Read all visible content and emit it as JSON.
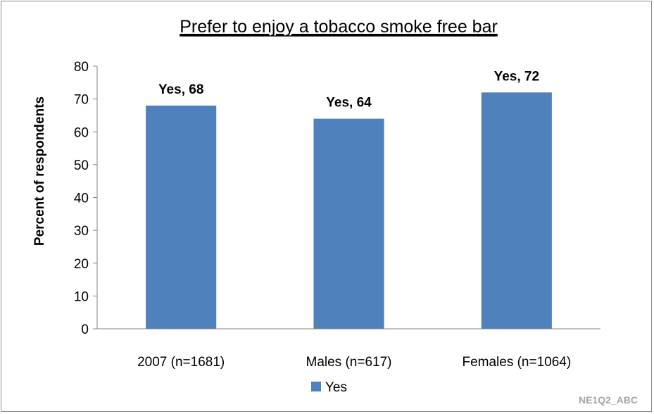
{
  "chart_data": {
    "type": "bar",
    "title": "Prefer to enjoy a tobacco smoke free bar",
    "xlabel": "",
    "ylabel": "Percent of respondents",
    "categories": [
      "2007 (n=1681)",
      "Males (n=617)",
      "Females (n=1064)"
    ],
    "series": [
      {
        "name": "Yes",
        "values": [
          68,
          64,
          72
        ],
        "data_labels": [
          "Yes, 68",
          "Yes, 64",
          "Yes, 72"
        ],
        "color": "#4f81bd"
      }
    ],
    "ylim": [
      0,
      80
    ],
    "yticks": [
      "0",
      "10",
      "20",
      "30",
      "40",
      "50",
      "60",
      "70",
      "80"
    ],
    "grid": false,
    "legend_position": "bottom"
  },
  "footer": {
    "code": "NE1Q2_ABC"
  }
}
